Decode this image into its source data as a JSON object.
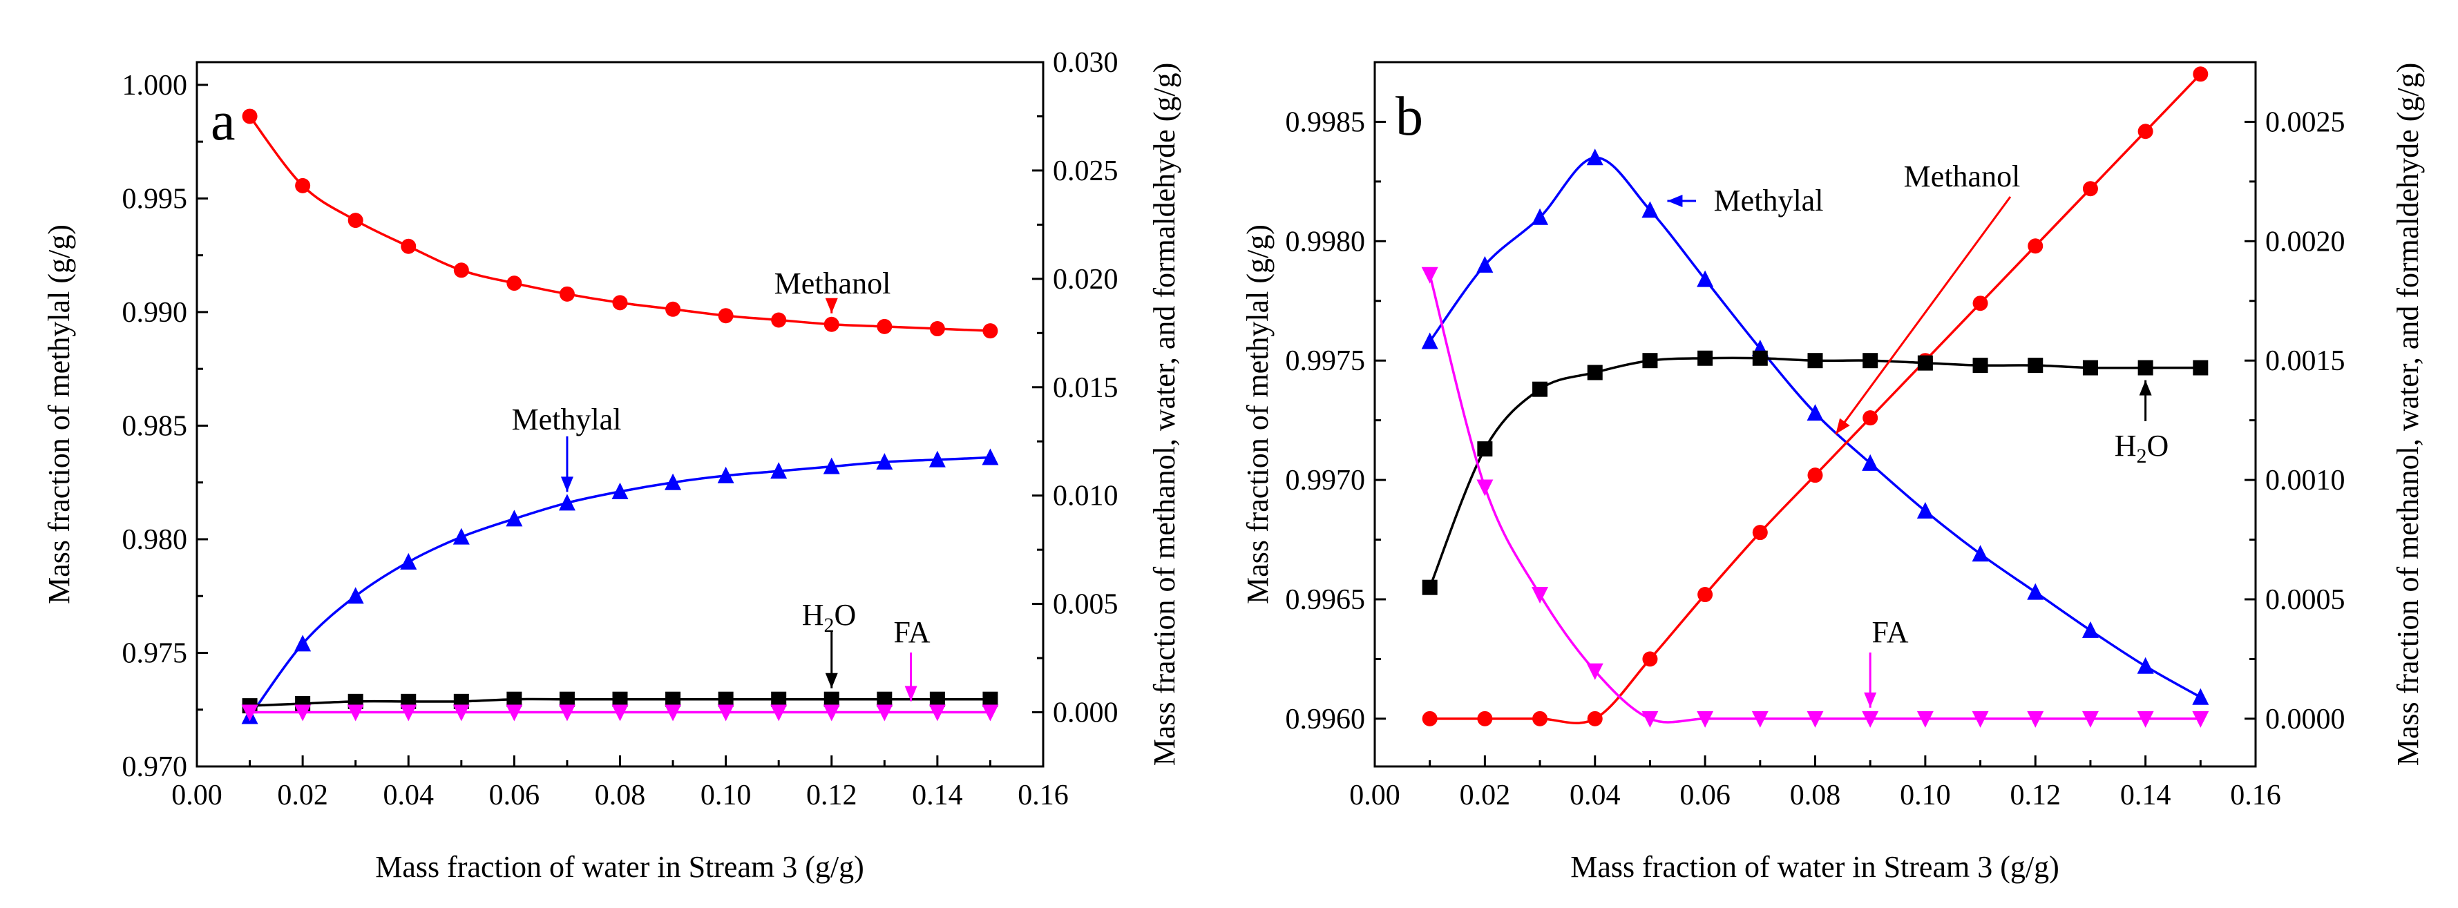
{
  "colors": {
    "methanol": "#ff0000",
    "methylal": "#0000ff",
    "water": "#000000",
    "fa": "#ff00ff"
  },
  "chart_data": [
    {
      "type": "line",
      "panel": "a",
      "xlabel": "Mass fraction of water in  Stream 3 (g/g)",
      "ylabel": "Mass fraction of methylal (g/g)",
      "y2label": "Mass fraction of methanol, water, and formaldehyde (g/g)",
      "xlim": [
        0.0,
        0.16
      ],
      "ylim": [
        0.97,
        1.001
      ],
      "y2lim": [
        -0.0025,
        0.03
      ],
      "xticks": [
        "0.00",
        "0.02",
        "0.04",
        "0.06",
        "0.08",
        "0.10",
        "0.12",
        "0.14",
        "0.16"
      ],
      "yticks": [
        "0.970",
        "0.975",
        "0.980",
        "0.985",
        "0.990",
        "0.995",
        "1.000"
      ],
      "y2ticks": [
        "0.000",
        "0.005",
        "0.010",
        "0.015",
        "0.020",
        "0.025",
        "0.030"
      ],
      "x": [
        0.01,
        0.02,
        0.03,
        0.04,
        0.05,
        0.06,
        0.07,
        0.08,
        0.09,
        0.1,
        0.11,
        0.12,
        0.13,
        0.14,
        0.15
      ],
      "series": [
        {
          "name": "Methylal",
          "axis": "left",
          "marker": "triangle-up",
          "color_key": "methylal",
          "values": [
            0.9722,
            0.9754,
            0.9775,
            0.979,
            0.9801,
            0.9809,
            0.9816,
            0.9821,
            0.9825,
            0.9828,
            0.983,
            0.9832,
            0.9834,
            0.9835,
            0.9836
          ]
        },
        {
          "name": "Methanol",
          "axis": "right",
          "marker": "circle",
          "color_key": "methanol",
          "values": [
            0.0275,
            0.0243,
            0.0227,
            0.0215,
            0.0204,
            0.0198,
            0.0193,
            0.0189,
            0.0186,
            0.0183,
            0.0181,
            0.0179,
            0.0178,
            0.0177,
            0.0176
          ]
        },
        {
          "name": "H2O",
          "axis": "right",
          "marker": "square",
          "color_key": "water",
          "values": [
            0.0003,
            0.0004,
            0.0005,
            0.0005,
            0.0005,
            0.0006,
            0.0006,
            0.0006,
            0.0006,
            0.0006,
            0.0006,
            0.0006,
            0.0006,
            0.0006,
            0.0006
          ]
        },
        {
          "name": "FA",
          "axis": "right",
          "marker": "triangle-down",
          "color_key": "fa",
          "values": [
            0.0,
            0.0,
            0.0,
            0.0,
            0.0,
            0.0,
            0.0,
            0.0,
            0.0,
            0.0,
            0.0,
            0.0,
            0.0,
            0.0,
            0.0
          ]
        }
      ],
      "annotations": [
        {
          "text": "Methanol",
          "series": "Methanol",
          "x": 0.12
        },
        {
          "text": "Methylal",
          "series": "Methylal",
          "x": 0.07
        },
        {
          "text": "H",
          "sub": "2",
          "tail": "O",
          "series": "H2O",
          "x": 0.12
        },
        {
          "text": "FA",
          "series": "FA",
          "x": 0.135
        }
      ]
    },
    {
      "type": "line",
      "panel": "b",
      "xlabel": "Mass fraction of water in Stream 3 (g/g)",
      "ylabel": "Mass fraction of methylal (g/g)",
      "y2label": "Mass fraction of methanol, water, and formaldehyde (g/g)",
      "xlim": [
        0.0,
        0.16
      ],
      "ylim": [
        0.9958,
        0.99875
      ],
      "y2lim": [
        -0.0002,
        0.00275
      ],
      "xticks": [
        "0.00",
        "0.02",
        "0.04",
        "0.06",
        "0.08",
        "0.10",
        "0.12",
        "0.14",
        "0.16"
      ],
      "yticks": [
        "0.9960",
        "0.9965",
        "0.9970",
        "0.9975",
        "0.9980",
        "0.9985"
      ],
      "y2ticks": [
        "0.0000",
        "0.0005",
        "0.0010",
        "0.0015",
        "0.0020",
        "0.0025"
      ],
      "x": [
        0.01,
        0.02,
        0.03,
        0.04,
        0.05,
        0.06,
        0.07,
        0.08,
        0.09,
        0.1,
        0.11,
        0.12,
        0.13,
        0.14,
        0.15
      ],
      "series": [
        {
          "name": "Methylal",
          "axis": "left",
          "marker": "triangle-up",
          "color_key": "methylal",
          "values": [
            0.99758,
            0.9979,
            0.9981,
            0.99835,
            0.99813,
            0.99784,
            0.99755,
            0.99728,
            0.99707,
            0.99687,
            0.99669,
            0.99653,
            0.99637,
            0.99622,
            0.99609
          ]
        },
        {
          "name": "Methanol",
          "axis": "right",
          "marker": "circle",
          "color_key": "methanol",
          "values": [
            0.0,
            0.0,
            0.0,
            0.0,
            0.00025,
            0.00052,
            0.00078,
            0.00102,
            0.00126,
            0.0015,
            0.00174,
            0.00198,
            0.00222,
            0.00246,
            0.0027
          ]
        },
        {
          "name": "H2O",
          "axis": "right",
          "marker": "square",
          "color_key": "water",
          "values": [
            0.00055,
            0.00113,
            0.00138,
            0.00145,
            0.0015,
            0.00151,
            0.00151,
            0.0015,
            0.0015,
            0.00149,
            0.00148,
            0.00148,
            0.00147,
            0.00147,
            0.00147
          ]
        },
        {
          "name": "FA",
          "axis": "right",
          "marker": "triangle-down",
          "color_key": "fa",
          "values": [
            0.00186,
            0.00097,
            0.00052,
            0.0002,
            0.0,
            0.0,
            0.0,
            0.0,
            0.0,
            0.0,
            0.0,
            0.0,
            0.0,
            0.0,
            0.0
          ]
        }
      ],
      "annotations": [
        {
          "text": "Methylal",
          "series": "Methylal",
          "x": 0.05
        },
        {
          "text": "Methanol",
          "series": "Methanol",
          "x": 0.085
        },
        {
          "text": "H",
          "sub": "2",
          "tail": "O",
          "series": "H2O",
          "x": 0.14
        },
        {
          "text": "FA",
          "series": "FA",
          "x": 0.09
        }
      ]
    }
  ]
}
